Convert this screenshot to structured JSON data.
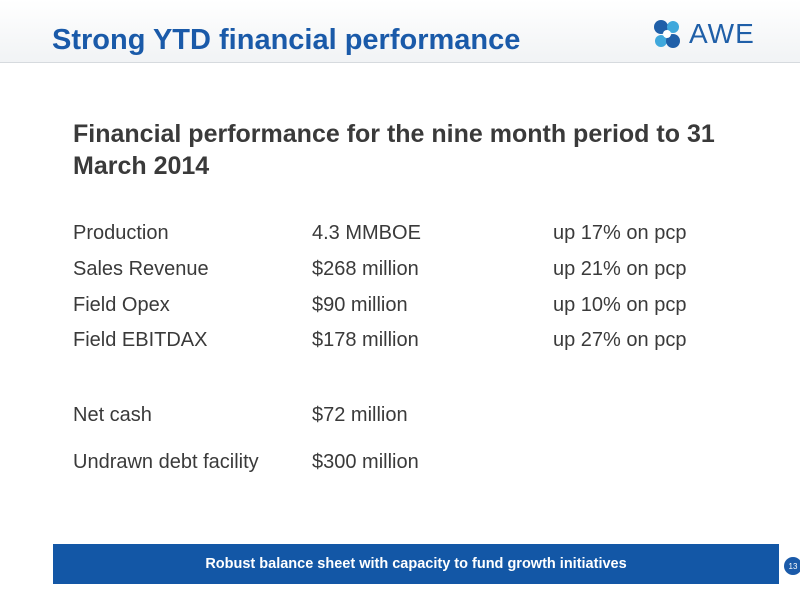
{
  "slide": {
    "title": "Strong YTD financial performance",
    "logo_text": "AWE",
    "subtitle": "Financial performance for the nine month period to 31 March 2014",
    "rows": [
      {
        "label": "Production",
        "value": "4.3 MMBOE",
        "change": "up 17% on pcp"
      },
      {
        "label": "Sales Revenue",
        "value": "$268 million",
        "change": "up 21% on pcp"
      },
      {
        "label": "Field Opex",
        "value": "$90 million",
        "change": "up 10% on pcp"
      },
      {
        "label": "Field EBITDAX",
        "value": "$178 million",
        "change": "up 27% on pcp"
      },
      {
        "label": "Net cash",
        "value": "$72 million",
        "change": ""
      },
      {
        "label": "Undrawn debt facility",
        "value": "$300 million",
        "change": ""
      }
    ],
    "banner": "Robust balance sheet with capacity to fund growth initiatives",
    "page_number": "13"
  },
  "colors": {
    "title_blue": "#1a5aa9",
    "banner_blue": "#1357a6",
    "body_text": "#3a3a3a"
  }
}
